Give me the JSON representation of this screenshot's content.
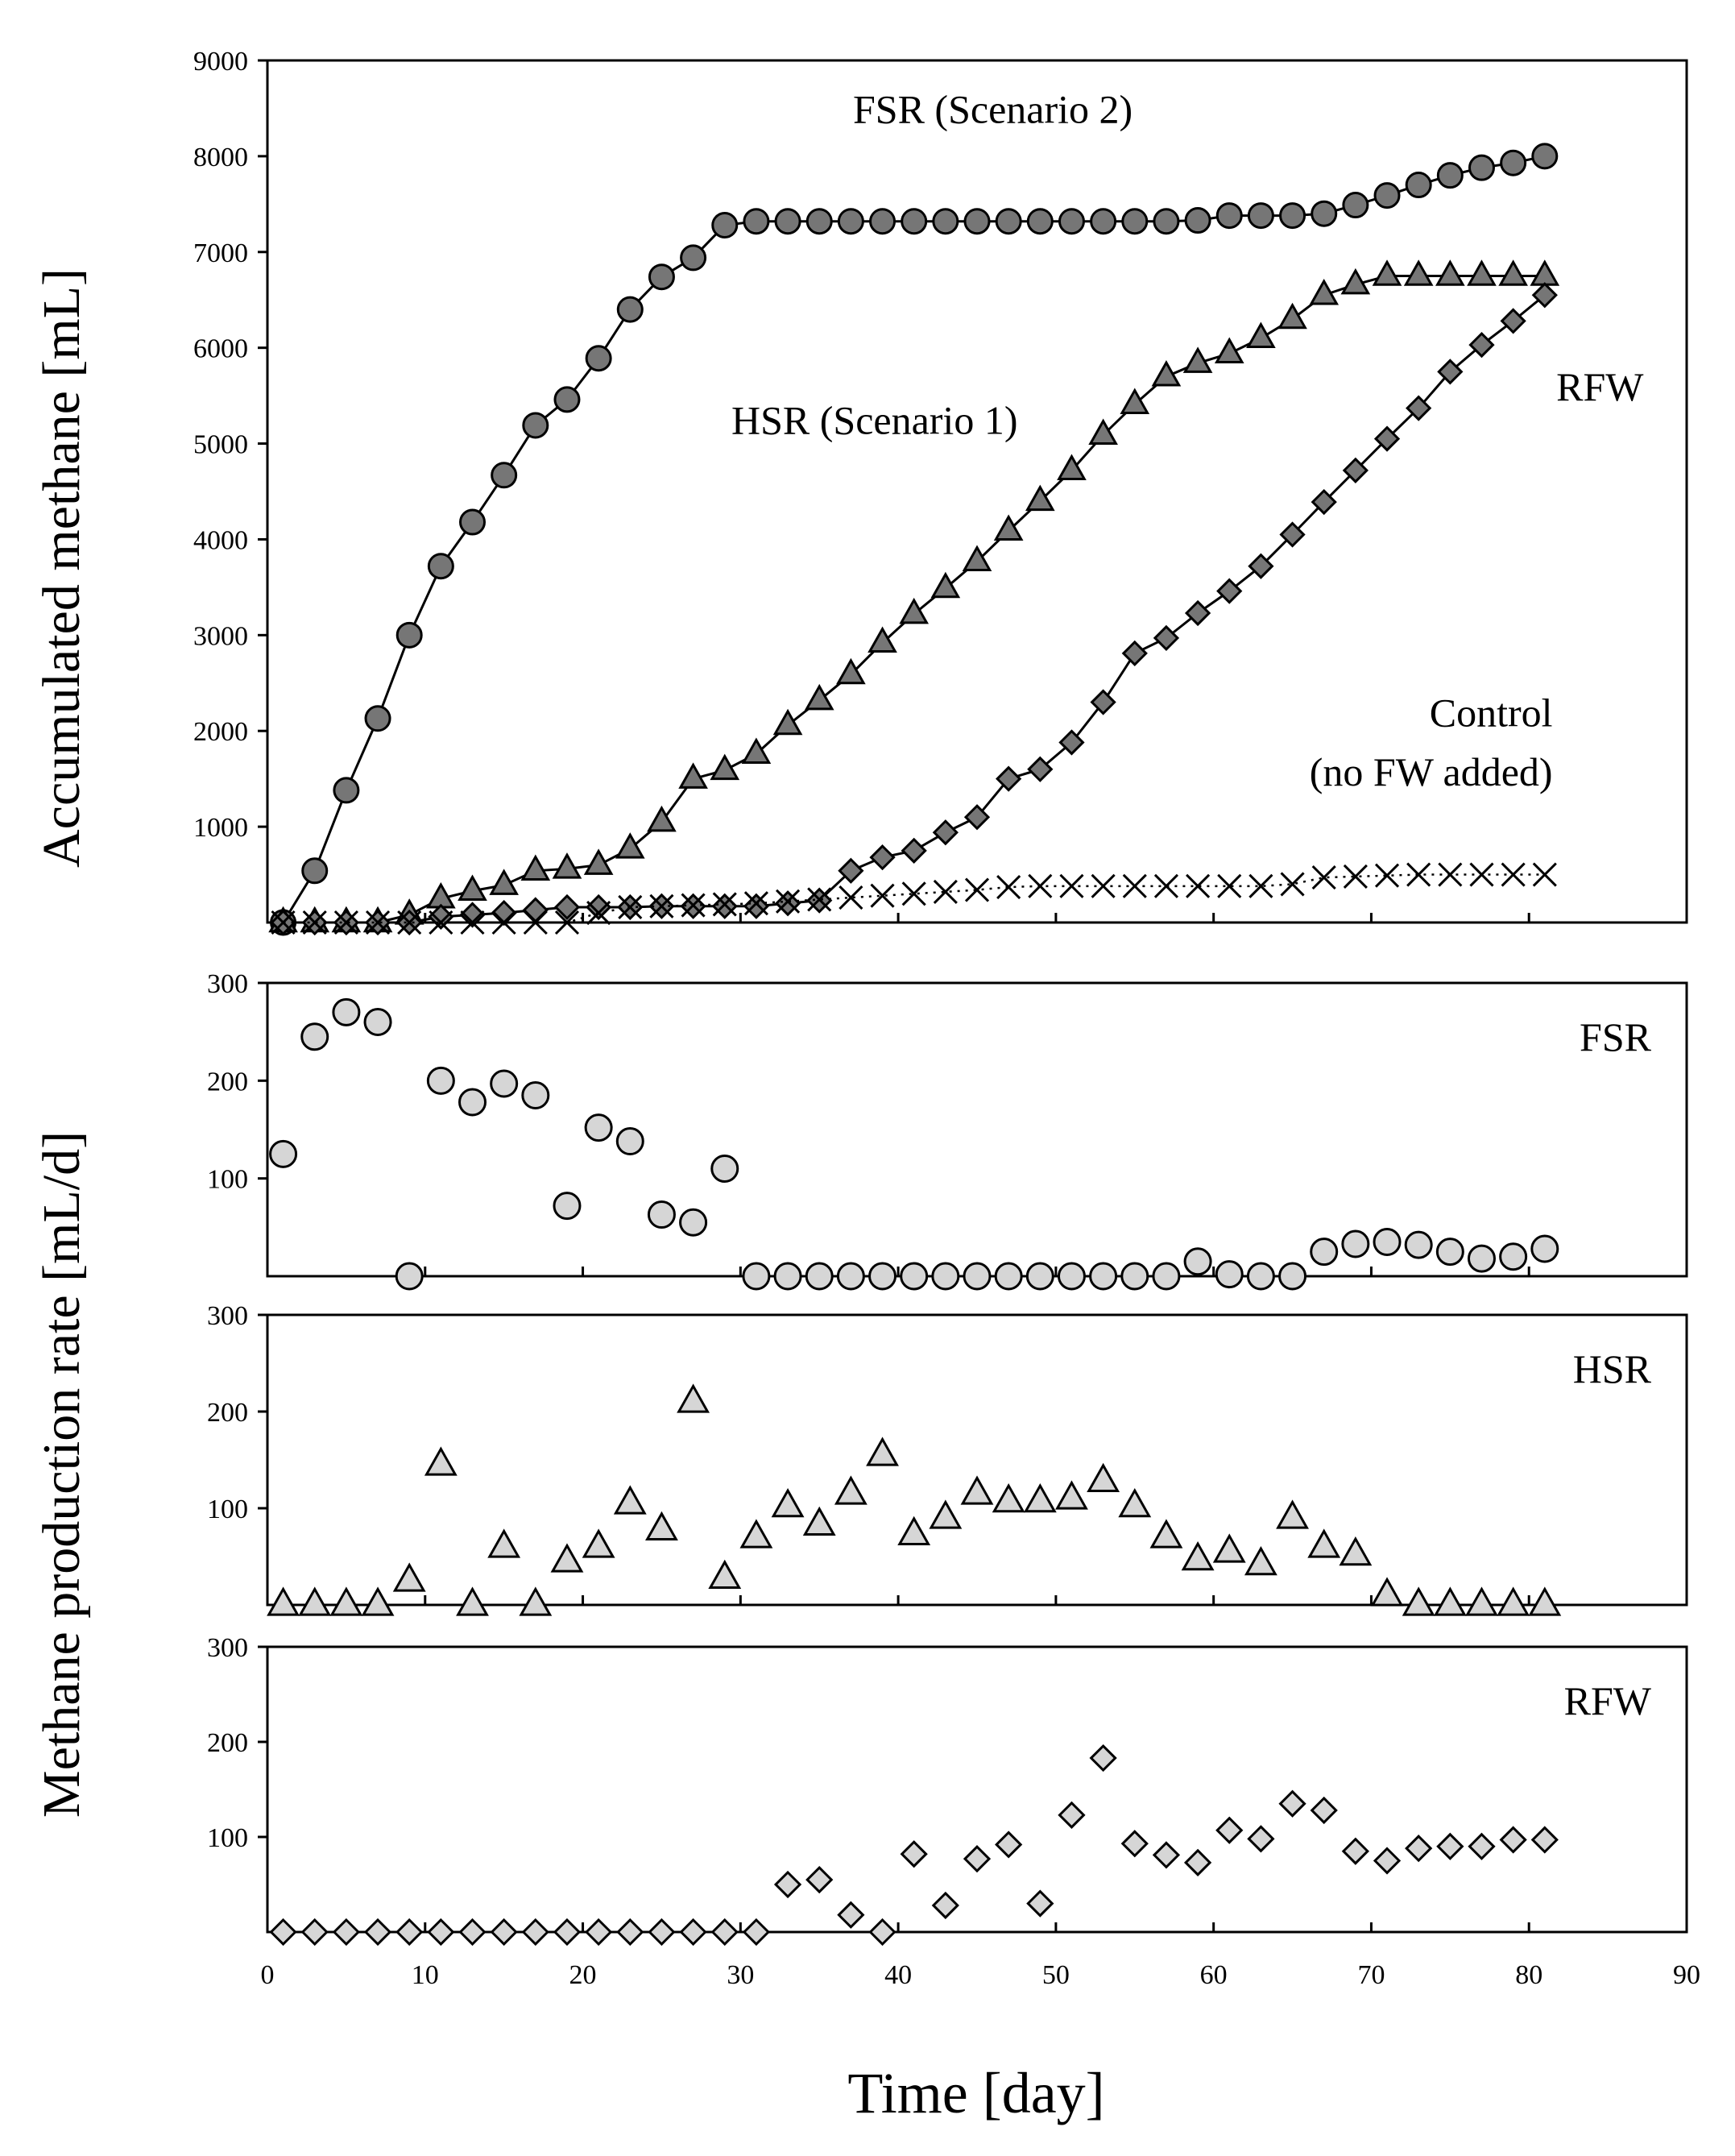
{
  "chart_data": {
    "type": "scatter",
    "x_axis": {
      "label": "Time [day]",
      "range": [
        0,
        90
      ],
      "ticks": [
        0,
        10,
        20,
        30,
        40,
        50,
        60,
        70,
        80,
        90
      ]
    },
    "y_label_top": "Accumulated methane [mL]",
    "y_label_bottom": "Methane production rate [mL/d]",
    "panels": [
      {
        "id": "accumulated",
        "type": "line",
        "ylim": [
          0,
          9000
        ],
        "yticks": [
          1000,
          2000,
          3000,
          4000,
          5000,
          6000,
          7000,
          8000,
          9000
        ],
        "annotations": [
          {
            "text": "FSR (Scenario 2)",
            "x": 46,
            "y": 8350,
            "anchor": "middle"
          },
          {
            "text": "HSR (Scenario 1)",
            "x": 38.5,
            "y": 5100,
            "anchor": "middle"
          },
          {
            "text": "RFW",
            "x": 84.5,
            "y": 5450,
            "anchor": "middle"
          },
          {
            "text": "Control",
            "x": 81.5,
            "y": 2050,
            "anchor": "end"
          },
          {
            "text": "(no FW added)",
            "x": 81.5,
            "y": 1430,
            "anchor": "end"
          }
        ],
        "series": [
          {
            "marker": "circle",
            "x": [
              1,
              3,
              5,
              7,
              9,
              11,
              13,
              15,
              17,
              19,
              21,
              23,
              25,
              27,
              29,
              31,
              33,
              35,
              37,
              39,
              41,
              43,
              45,
              47,
              49,
              51,
              53,
              55,
              57,
              59,
              61,
              63,
              65,
              67,
              69,
              71,
              73,
              75,
              77,
              79,
              81
            ],
            "values": [
              0,
              540,
              1380,
              2130,
              3000,
              3720,
              4180,
              4670,
              5190,
              5460,
              5890,
              6400,
              6740,
              6940,
              7280,
              7320,
              7320,
              7320,
              7320,
              7320,
              7320,
              7320,
              7320,
              7320,
              7320,
              7320,
              7320,
              7320,
              7320,
              7330,
              7380,
              7380,
              7380,
              7400,
              7490,
              7590,
              7700,
              7800,
              7880,
              7930,
              8000
            ]
          },
          {
            "marker": "triangle",
            "x": [
              1,
              3,
              5,
              7,
              9,
              11,
              13,
              15,
              17,
              19,
              21,
              23,
              25,
              27,
              29,
              31,
              33,
              35,
              37,
              39,
              41,
              43,
              45,
              47,
              49,
              51,
              53,
              55,
              57,
              59,
              61,
              63,
              65,
              67,
              69,
              71,
              73,
              75,
              77,
              79,
              81
            ],
            "values": [
              0,
              0,
              0,
              0,
              80,
              250,
              330,
              390,
              540,
              560,
              600,
              770,
              1050,
              1500,
              1590,
              1760,
              2060,
              2320,
              2590,
              2920,
              3220,
              3490,
              3770,
              4090,
              4400,
              4720,
              5090,
              5410,
              5700,
              5840,
              5940,
              6100,
              6300,
              6550,
              6660,
              6750,
              6750,
              6750,
              6750,
              6750,
              6750
            ]
          },
          {
            "marker": "diamond",
            "x": [
              1,
              3,
              5,
              7,
              9,
              11,
              13,
              15,
              17,
              19,
              21,
              23,
              25,
              27,
              29,
              31,
              33,
              35,
              37,
              39,
              41,
              43,
              45,
              47,
              49,
              51,
              53,
              55,
              57,
              59,
              61,
              63,
              65,
              67,
              69,
              71,
              73,
              75,
              77,
              79,
              81
            ],
            "values": [
              0,
              0,
              0,
              0,
              0,
              60,
              80,
              100,
              130,
              160,
              160,
              160,
              170,
              170,
              170,
              170,
              200,
              230,
              540,
              680,
              750,
              940,
              1100,
              1500,
              1600,
              1880,
              2300,
              2810,
              2970,
              3230,
              3460,
              3720,
              4050,
              4390,
              4720,
              5050,
              5370,
              5750,
              6030,
              6280,
              6550
            ]
          },
          {
            "marker": "x",
            "dotted_line": true,
            "x": [
              1,
              3,
              5,
              7,
              9,
              11,
              13,
              15,
              17,
              19,
              21,
              23,
              25,
              27,
              29,
              31,
              33,
              35,
              37,
              39,
              41,
              43,
              45,
              47,
              49,
              51,
              53,
              55,
              57,
              59,
              61,
              63,
              65,
              67,
              69,
              71,
              73,
              75,
              77,
              79,
              81
            ],
            "values": [
              0,
              0,
              0,
              0,
              0,
              0,
              0,
              0,
              0,
              0,
              100,
              160,
              170,
              180,
              190,
              200,
              220,
              240,
              260,
              280,
              300,
              320,
              340,
              370,
              380,
              380,
              380,
              380,
              380,
              380,
              380,
              380,
              400,
              470,
              480,
              490,
              500,
              500,
              500,
              500,
              500
            ]
          }
        ]
      },
      {
        "id": "rate-fsr",
        "label": "FSR",
        "marker": "circle",
        "ylim": [
          0,
          300
        ],
        "yticks": [
          100,
          200,
          300
        ],
        "x": [
          1,
          3,
          5,
          7,
          9,
          11,
          13,
          15,
          17,
          19,
          21,
          23,
          25,
          27,
          29,
          31,
          33,
          35,
          37,
          39,
          41,
          43,
          45,
          47,
          49,
          51,
          53,
          55,
          57,
          59,
          61,
          63,
          65,
          67,
          69,
          71,
          73,
          75,
          77,
          79,
          81
        ],
        "values": [
          125,
          245,
          270,
          260,
          0,
          200,
          178,
          197,
          185,
          72,
          152,
          138,
          63,
          55,
          110,
          0,
          0,
          0,
          0,
          0,
          0,
          0,
          0,
          0,
          0,
          0,
          0,
          0,
          0,
          15,
          2,
          0,
          0,
          25,
          33,
          35,
          32,
          25,
          18,
          20,
          28
        ]
      },
      {
        "id": "rate-hsr",
        "label": "HSR",
        "marker": "triangle",
        "ylim": [
          0,
          300
        ],
        "yticks": [
          100,
          200,
          300
        ],
        "x": [
          1,
          3,
          5,
          7,
          9,
          11,
          13,
          15,
          17,
          19,
          21,
          23,
          25,
          27,
          29,
          31,
          33,
          35,
          37,
          39,
          41,
          43,
          45,
          47,
          49,
          51,
          53,
          55,
          57,
          59,
          61,
          63,
          65,
          67,
          69,
          71,
          73,
          75,
          77,
          79,
          81
        ],
        "values": [
          0,
          0,
          0,
          0,
          25,
          145,
          0,
          60,
          0,
          45,
          60,
          105,
          78,
          210,
          28,
          70,
          102,
          83,
          115,
          155,
          73,
          90,
          115,
          107,
          107,
          110,
          128,
          102,
          70,
          47,
          55,
          42,
          90,
          60,
          52,
          10,
          0,
          0,
          0,
          0,
          0
        ]
      },
      {
        "id": "rate-rfw",
        "label": "RFW",
        "marker": "diamond",
        "ylim": [
          0,
          300
        ],
        "yticks": [
          100,
          200,
          300
        ],
        "x": [
          1,
          3,
          5,
          7,
          9,
          11,
          13,
          15,
          17,
          19,
          21,
          23,
          25,
          27,
          29,
          31,
          33,
          35,
          37,
          39,
          41,
          43,
          45,
          47,
          49,
          51,
          53,
          55,
          57,
          59,
          61,
          63,
          65,
          67,
          69,
          71,
          73,
          75,
          77,
          79,
          81
        ],
        "values": [
          0,
          0,
          0,
          0,
          0,
          0,
          0,
          0,
          0,
          0,
          0,
          0,
          0,
          0,
          0,
          0,
          50,
          55,
          18,
          0,
          82,
          28,
          77,
          92,
          30,
          123,
          183,
          93,
          81,
          73,
          107,
          98,
          135,
          128,
          85,
          75,
          88,
          90,
          90,
          97,
          97
        ]
      }
    ],
    "colors": {
      "marker_dark": "#767676",
      "marker_light": "#d6d6d6",
      "stroke": "#000000"
    }
  }
}
